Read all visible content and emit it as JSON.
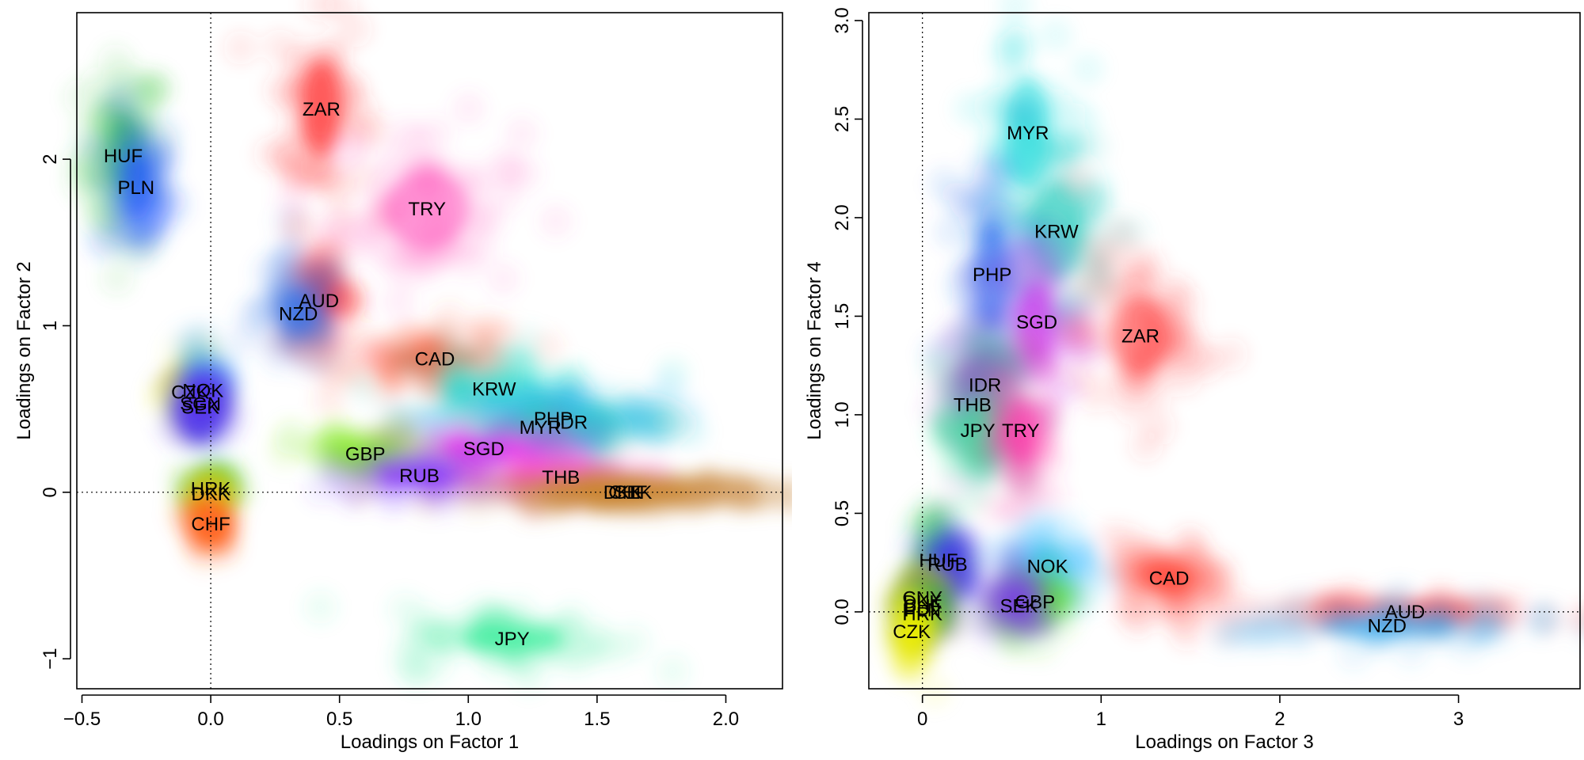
{
  "chart_data": [
    {
      "type": "scatter",
      "title": "",
      "xlabel": "Loadings on Factor 1",
      "ylabel": "Loadings on Factor 2",
      "xlim": [
        -0.52,
        2.22
      ],
      "ylim": [
        -1.18,
        2.88
      ],
      "xticks": [
        -0.5,
        0.0,
        0.5,
        1.0,
        1.5,
        2.0
      ],
      "xtick_labels": [
        "−0.5",
        "0.0",
        "0.5",
        "1.0",
        "1.5",
        "2.0"
      ],
      "yticks": [
        -1,
        0,
        1,
        2
      ],
      "ytick_labels": [
        "−1",
        "0",
        "1",
        "2"
      ],
      "reference_lines": {
        "x": 0,
        "y": 0
      },
      "points": [
        {
          "label": "HUF",
          "x": -0.34,
          "y": 2.02,
          "color": "#33cc33",
          "sx": 0.08,
          "sy": 0.28
        },
        {
          "label": "PLN",
          "x": -0.29,
          "y": 1.83,
          "color": "#2255ff",
          "sx": 0.07,
          "sy": 0.22
        },
        {
          "label": "ZAR",
          "x": 0.43,
          "y": 2.3,
          "color": "#ff3333",
          "sx": 0.09,
          "sy": 0.32
        },
        {
          "label": "TRY",
          "x": 0.84,
          "y": 1.7,
          "color": "#ff55bb",
          "sx": 0.18,
          "sy": 0.26
        },
        {
          "label": "AUD",
          "x": 0.42,
          "y": 1.15,
          "color": "#ff2222",
          "sx": 0.07,
          "sy": 0.13
        },
        {
          "label": "NZD",
          "x": 0.34,
          "y": 1.07,
          "color": "#3377ee",
          "sx": 0.08,
          "sy": 0.17
        },
        {
          "label": "CAD",
          "x": 0.87,
          "y": 0.8,
          "color": "#ff5533",
          "sx": 0.18,
          "sy": 0.1
        },
        {
          "label": "KRW",
          "x": 1.1,
          "y": 0.62,
          "color": "#22ddcc",
          "sx": 0.22,
          "sy": 0.12
        },
        {
          "label": "PHP",
          "x": 1.33,
          "y": 0.44,
          "color": "#1199ff",
          "sx": 0.22,
          "sy": 0.09
        },
        {
          "label": "IDR",
          "x": 1.4,
          "y": 0.42,
          "color": "#22ccdd",
          "sx": 0.22,
          "sy": 0.09
        },
        {
          "label": "MYR",
          "x": 1.28,
          "y": 0.39,
          "color": "#33ccbb",
          "sx": 0.22,
          "sy": 0.09
        },
        {
          "label": "SGD",
          "x": 1.06,
          "y": 0.26,
          "color": "#ee22ee",
          "sx": 0.2,
          "sy": 0.08
        },
        {
          "label": "GBP",
          "x": 0.6,
          "y": 0.23,
          "color": "#88ee22",
          "sx": 0.14,
          "sy": 0.07
        },
        {
          "label": "RUB",
          "x": 0.81,
          "y": 0.1,
          "color": "#7733ff",
          "sx": 0.17,
          "sy": 0.06
        },
        {
          "label": "THB",
          "x": 1.36,
          "y": 0.09,
          "color": "#ff44cc",
          "sx": 0.22,
          "sy": 0.05
        },
        {
          "label": "DKK",
          "x": 1.6,
          "y": 0.0,
          "color": "#cc8833",
          "sx": 0.27,
          "sy": 0.03
        },
        {
          "label": "CHF",
          "x": 1.62,
          "y": 0.0,
          "color": "#cc8833",
          "sx": 0.27,
          "sy": 0.03
        },
        {
          "label": "SEK",
          "x": 1.64,
          "y": 0.0,
          "color": "#cc8833",
          "sx": 0.27,
          "sy": 0.03
        },
        {
          "label": "CZK",
          "x": -0.08,
          "y": 0.6,
          "color": "#eeee00",
          "sx": 0.04,
          "sy": 0.1
        },
        {
          "label": "NOK",
          "x": -0.03,
          "y": 0.61,
          "color": "#33aaff",
          "sx": 0.04,
          "sy": 0.12
        },
        {
          "label": "SGN",
          "x": -0.04,
          "y": 0.53,
          "color": "#5533ee",
          "sx": 0.04,
          "sy": 0.09
        },
        {
          "label": "SEK",
          "x": -0.04,
          "y": 0.51,
          "color": "#5533ee",
          "sx": 0.04,
          "sy": 0.09
        },
        {
          "label": "HRK",
          "x": 0.0,
          "y": 0.02,
          "color": "#33cc22",
          "sx": 0.04,
          "sy": 0.05
        },
        {
          "label": "DKK",
          "x": 0.0,
          "y": -0.01,
          "color": "#cccc22",
          "sx": 0.03,
          "sy": 0.04
        },
        {
          "label": "CHF",
          "x": 0.0,
          "y": -0.19,
          "color": "#ff6622",
          "sx": 0.04,
          "sy": 0.08
        },
        {
          "label": "JPY",
          "x": 1.17,
          "y": -0.88,
          "color": "#33ee99",
          "sx": 0.22,
          "sy": 0.09
        }
      ]
    },
    {
      "type": "scatter",
      "title": "",
      "xlabel": "Loadings on Factor 3",
      "ylabel": "Loadings on Factor 4",
      "xlim": [
        -0.3,
        3.68
      ],
      "ylim": [
        -0.39,
        3.04
      ],
      "xticks": [
        0,
        1,
        2,
        3
      ],
      "xtick_labels": [
        "0",
        "1",
        "2",
        "3"
      ],
      "yticks": [
        0.0,
        0.5,
        1.0,
        1.5,
        2.0,
        2.5,
        3.0
      ],
      "ytick_labels": [
        "0.0",
        "0.5",
        "1.0",
        "1.5",
        "2.0",
        "2.5",
        "3.0"
      ],
      "reference_lines": {
        "x": 0,
        "y": 0
      },
      "points": [
        {
          "label": "MYR",
          "x": 0.59,
          "y": 2.43,
          "color": "#22dddd",
          "sx": 0.14,
          "sy": 0.32
        },
        {
          "label": "KRW",
          "x": 0.75,
          "y": 1.93,
          "color": "#22ccbb",
          "sx": 0.16,
          "sy": 0.28
        },
        {
          "label": "PHP",
          "x": 0.39,
          "y": 1.71,
          "color": "#2266ee",
          "sx": 0.11,
          "sy": 0.3
        },
        {
          "label": "SGD",
          "x": 0.64,
          "y": 1.47,
          "color": "#cc33ee",
          "sx": 0.12,
          "sy": 0.22
        },
        {
          "label": "ZAR",
          "x": 1.22,
          "y": 1.4,
          "color": "#ff4444",
          "sx": 0.18,
          "sy": 0.22
        },
        {
          "label": "IDR",
          "x": 0.35,
          "y": 1.15,
          "color": "#33ccaa",
          "sx": 0.1,
          "sy": 0.18
        },
        {
          "label": "THB",
          "x": 0.28,
          "y": 1.05,
          "color": "#aa33cc",
          "sx": 0.09,
          "sy": 0.18
        },
        {
          "label": "JPY",
          "x": 0.31,
          "y": 0.92,
          "color": "#33ee99",
          "sx": 0.1,
          "sy": 0.16
        },
        {
          "label": "TRY",
          "x": 0.55,
          "y": 0.92,
          "color": "#ff33aa",
          "sx": 0.1,
          "sy": 0.2
        },
        {
          "label": "HUF",
          "x": 0.09,
          "y": 0.26,
          "color": "#22cc44",
          "sx": 0.06,
          "sy": 0.12
        },
        {
          "label": "RUB",
          "x": 0.14,
          "y": 0.24,
          "color": "#4433ee",
          "sx": 0.06,
          "sy": 0.1
        },
        {
          "label": "NOK",
          "x": 0.7,
          "y": 0.23,
          "color": "#33bbff",
          "sx": 0.13,
          "sy": 0.12
        },
        {
          "label": "CAD",
          "x": 1.38,
          "y": 0.17,
          "color": "#ff4433",
          "sx": 0.16,
          "sy": 0.09
        },
        {
          "label": "GBP",
          "x": 0.63,
          "y": 0.05,
          "color": "#55dd22",
          "sx": 0.1,
          "sy": 0.08
        },
        {
          "label": "SEK",
          "x": 0.54,
          "y": 0.03,
          "color": "#7744dd",
          "sx": 0.09,
          "sy": 0.08
        },
        {
          "label": "CNY",
          "x": 0.0,
          "y": 0.07,
          "color": "#99cc22",
          "sx": 0.05,
          "sy": 0.06
        },
        {
          "label": "DKK",
          "x": 0.0,
          "y": 0.05,
          "color": "#99cc22",
          "sx": 0.05,
          "sy": 0.06
        },
        {
          "label": "CHF",
          "x": 0.0,
          "y": 0.03,
          "color": "#cc8833",
          "sx": 0.05,
          "sy": 0.06
        },
        {
          "label": "PLN",
          "x": 0.0,
          "y": 0.01,
          "color": "#2266cc",
          "sx": 0.05,
          "sy": 0.06
        },
        {
          "label": "HRK",
          "x": 0.0,
          "y": -0.01,
          "color": "#33aa33",
          "sx": 0.05,
          "sy": 0.06
        },
        {
          "label": "CZK",
          "x": -0.06,
          "y": -0.1,
          "color": "#eeee00",
          "sx": 0.05,
          "sy": 0.1
        },
        {
          "label": "AUD",
          "x": 2.7,
          "y": 0.0,
          "color": "#ff3333",
          "sx": 0.45,
          "sy": 0.03
        },
        {
          "label": "NZD",
          "x": 2.6,
          "y": -0.07,
          "color": "#33aaee",
          "sx": 0.45,
          "sy": 0.05
        }
      ]
    }
  ]
}
